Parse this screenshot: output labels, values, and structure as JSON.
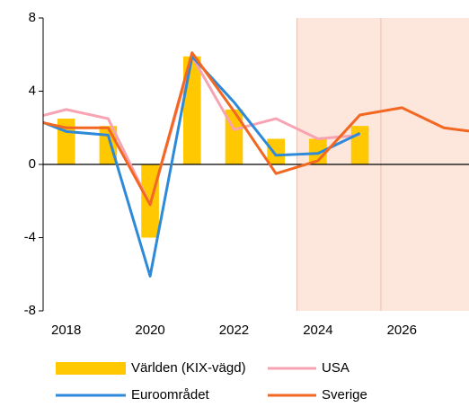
{
  "chart_data": {
    "type": "combo",
    "x": [
      2017,
      2018,
      2019,
      2020,
      2021,
      2022,
      2023,
      2024,
      2025,
      2026,
      2027,
      2028
    ],
    "xlim": [
      2017.45,
      2027.6
    ],
    "xticks": [
      2018,
      2020,
      2022,
      2024,
      2026
    ],
    "ylim": [
      -8,
      8
    ],
    "yticks": [
      8,
      4,
      0,
      -4,
      -8
    ],
    "shade_from": 2023.5,
    "shade_color": "#fde6dc",
    "vlines": [
      2023.5,
      2025.5
    ],
    "series": [
      {
        "name": "Världen (KIX-vägd)",
        "type": "bar",
        "color": "#ffc800",
        "values": [
          null,
          2.5,
          2.1,
          -4.0,
          5.9,
          3.0,
          1.4,
          1.4,
          2.1,
          null,
          null,
          null
        ]
      },
      {
        "name": "USA",
        "type": "line",
        "color": "#f7a3b4",
        "values": [
          2.4,
          3.0,
          2.5,
          -2.2,
          5.9,
          1.9,
          2.5,
          1.4,
          1.6,
          null,
          null,
          null
        ]
      },
      {
        "name": "Euroområdet",
        "type": "line",
        "color": "#2e8ad8",
        "values": [
          2.7,
          1.8,
          1.6,
          -6.1,
          5.9,
          3.4,
          0.5,
          0.6,
          1.7,
          null,
          null,
          null
        ]
      },
      {
        "name": "Sverige",
        "type": "line",
        "color": "#f26722",
        "values": [
          2.5,
          2.0,
          2.0,
          -2.2,
          6.1,
          2.9,
          -0.5,
          0.2,
          2.7,
          3.1,
          2.0,
          1.7
        ]
      }
    ]
  }
}
